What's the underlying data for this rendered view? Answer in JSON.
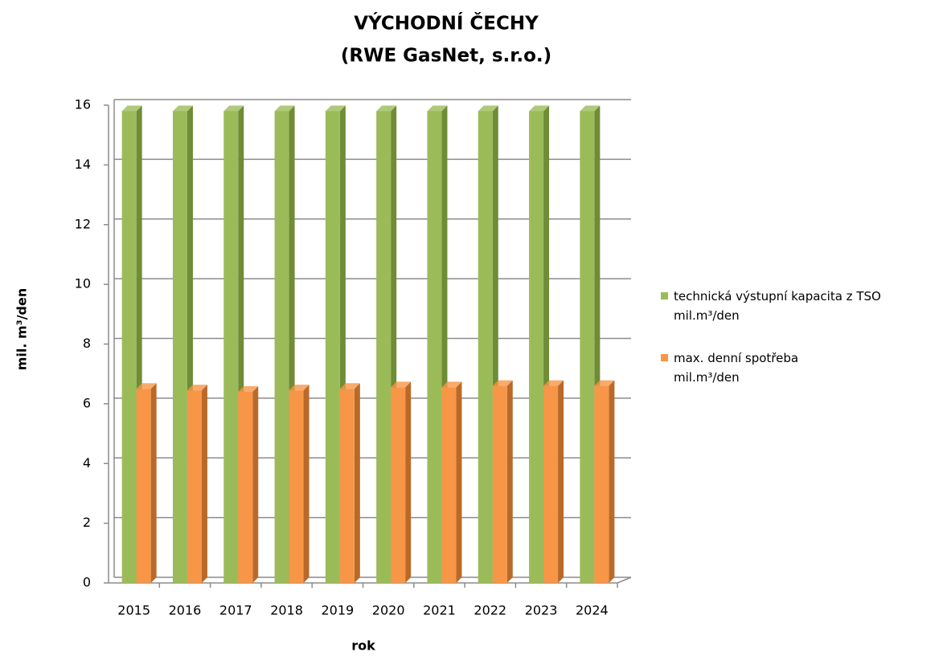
{
  "chart_data": {
    "type": "bar3d",
    "title": "VÝCHODNÍ ČECHY",
    "subtitle": "(RWE GasNet, s.r.o.)",
    "x_label": "rok",
    "y_label": "mil. m³/den",
    "categories": [
      "2015",
      "2016",
      "2017",
      "2018",
      "2019",
      "2020",
      "2021",
      "2022",
      "2023",
      "2024"
    ],
    "series": [
      {
        "name": "technická výstupní kapacita z TSO\nmil.m³/den",
        "color": "#9bbb59",
        "side": "#6f8c36",
        "values": [
          15.8,
          15.8,
          15.8,
          15.8,
          15.8,
          15.8,
          15.8,
          15.8,
          15.8,
          15.8
        ]
      },
      {
        "name": "max. denní spotřeba\nmil.m³/den",
        "color": "#f79646",
        "side": "#b96a2a",
        "values": [
          6.5,
          6.45,
          6.4,
          6.45,
          6.5,
          6.55,
          6.55,
          6.6,
          6.6,
          6.6
        ]
      }
    ],
    "ylim": [
      0,
      16
    ],
    "yticks": [
      0,
      2,
      4,
      6,
      8,
      10,
      12,
      14,
      16
    ],
    "grid": true,
    "legend": "right"
  }
}
